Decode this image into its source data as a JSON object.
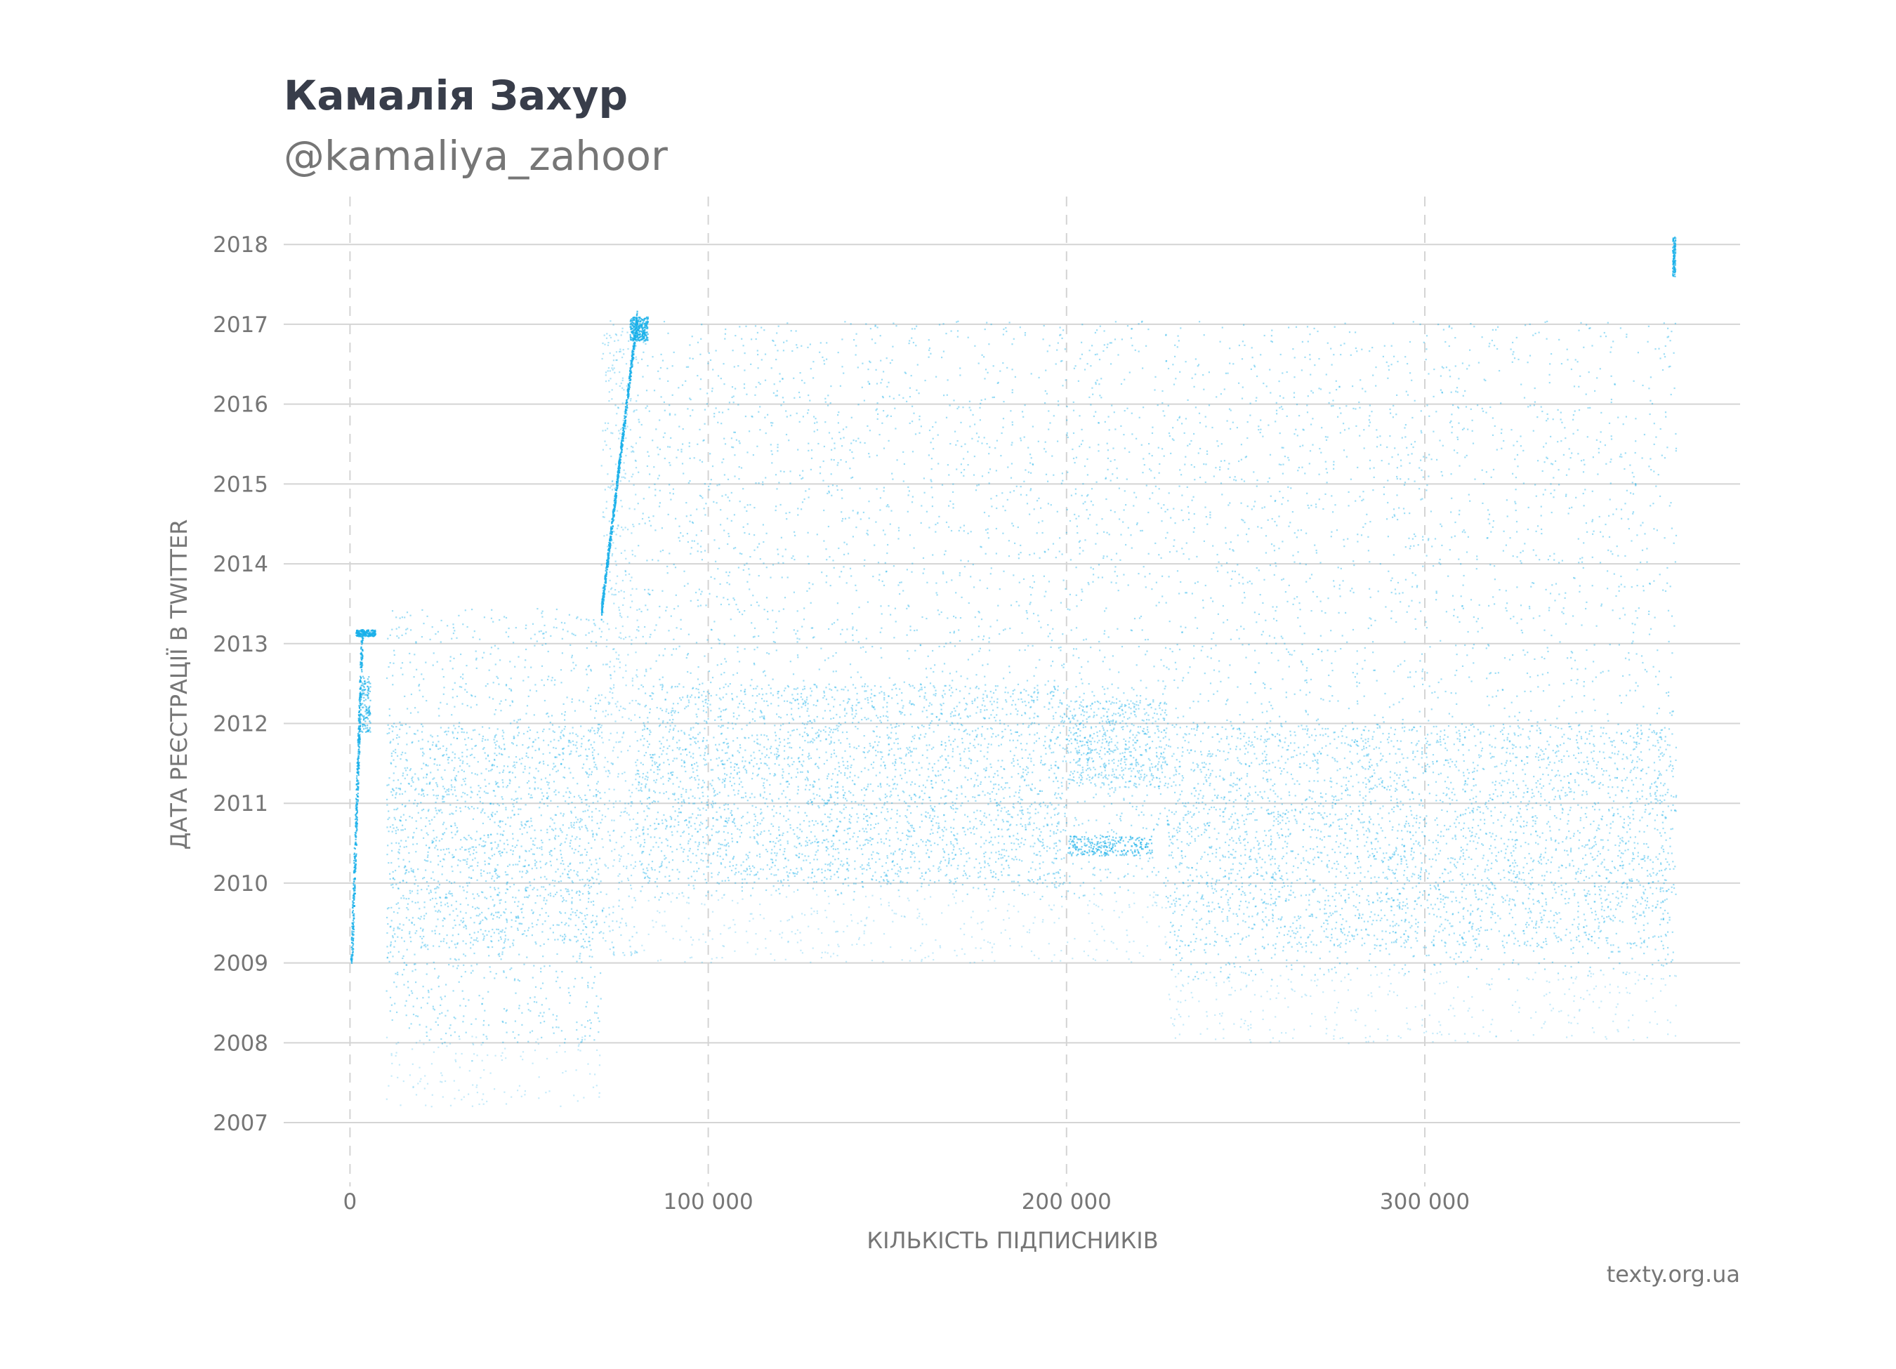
{
  "chart_data": {
    "type": "scatter",
    "title": "Камалія Захур",
    "subtitle": "@kamaliya_zahoor",
    "xlabel": "КІЛЬКІСТЬ ПІДПИСНИКІВ",
    "ylabel": "ДАТА РЕЄСТРАЦІЇ В TWITTER",
    "xlim": [
      -18500,
      388000
    ],
    "ylim": [
      2006.2,
      2018.6
    ],
    "x_ticks": [
      0,
      100000,
      200000,
      300000
    ],
    "x_tick_labels": [
      "0",
      "100 000",
      "200 000",
      "300 000"
    ],
    "y_ticks": [
      2007,
      2008,
      2009,
      2010,
      2011,
      2012,
      2013,
      2014,
      2015,
      2016,
      2017,
      2018
    ],
    "y_tick_labels": [
      "2007",
      "2008",
      "2009",
      "2010",
      "2011",
      "2012",
      "2013",
      "2014",
      "2015",
      "2016",
      "2017",
      "2018"
    ],
    "grid": {
      "x": "dashed",
      "y": "solid"
    },
    "point_color": "#1ab0ea",
    "density_regions": [
      {
        "x": [
          0,
          3000
        ],
        "y": [
          2009.0,
          2013.2
        ],
        "density": "line"
      },
      {
        "x": [
          10000,
          70000
        ],
        "y": [
          2007.2,
          2013.45
        ],
        "dense_y": [
          2009.2,
          2012.0
        ]
      },
      {
        "x": [
          70000,
          80000
        ],
        "y": [
          2009.1,
          2017.1
        ],
        "density": "ramp"
      },
      {
        "x": [
          80000,
          200000
        ],
        "y": [
          2009.0,
          2017.05
        ],
        "dense_y": [
          2010.0,
          2012.5
        ]
      },
      {
        "x": [
          200000,
          228000
        ],
        "y": [
          2009.0,
          2017.05
        ],
        "dense_y": [
          2011.2,
          2012.3
        ]
      },
      {
        "x": [
          228000,
          370000
        ],
        "y": [
          2008.0,
          2017.05
        ],
        "dense_y": [
          2009.2,
          2012.0
        ]
      }
    ],
    "point_count_rendered": "dense"
  },
  "source": "texty.org.ua"
}
